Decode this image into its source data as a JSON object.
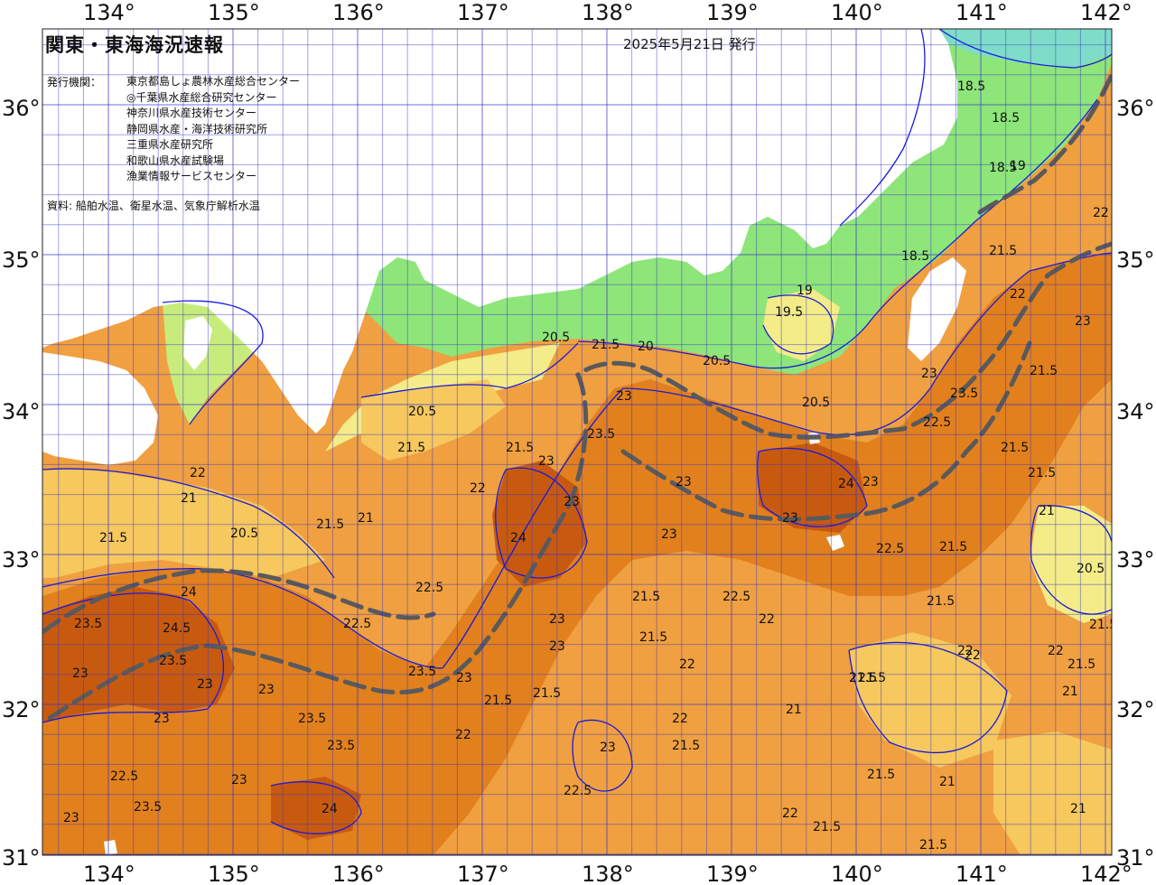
{
  "title": "関東・東海海況速報",
  "issue_date": "2025年5月21日 発行",
  "organizations": {
    "label": "発行機関：",
    "items": [
      "東京都島しょ農林水産総合センター",
      "◎千葉県水産総合研究センター",
      "神奈川県水産技術センター",
      "静岡県水産・海洋技術研究所",
      "三重県水産研究所",
      "和歌山県水産試験場",
      "漁業情報サービスセンター"
    ]
  },
  "source": "資料: 船舶水温、衛星水温、気象庁解析水温",
  "axes": {
    "lon_labels": [
      "134°",
      "135°",
      "136°",
      "137°",
      "138°",
      "139°",
      "140°",
      "141°",
      "142°"
    ],
    "lat_labels": [
      "36°",
      "35°",
      "34°",
      "33°",
      "32°",
      "31°"
    ]
  },
  "contour_labels": [
    "18.5",
    "19",
    "19.5",
    "20",
    "20.5",
    "21",
    "21.5",
    "22",
    "22.5",
    "23",
    "23.5",
    "24",
    "24.5"
  ],
  "colors": {
    "land": "#ffffff",
    "sst_18": "#7fdcc8",
    "sst_19": "#8ee57a",
    "sst_20": "#c8ec7c",
    "sst_20_5": "#f4ec88",
    "sst_21": "#f6c85e",
    "sst_22": "#f0a040",
    "sst_23": "#e2801e",
    "sst_24": "#c85a10",
    "contour_line": "#1a1ad8",
    "grid_line": "#3232c8",
    "current_axis": "#5a5a5a"
  }
}
